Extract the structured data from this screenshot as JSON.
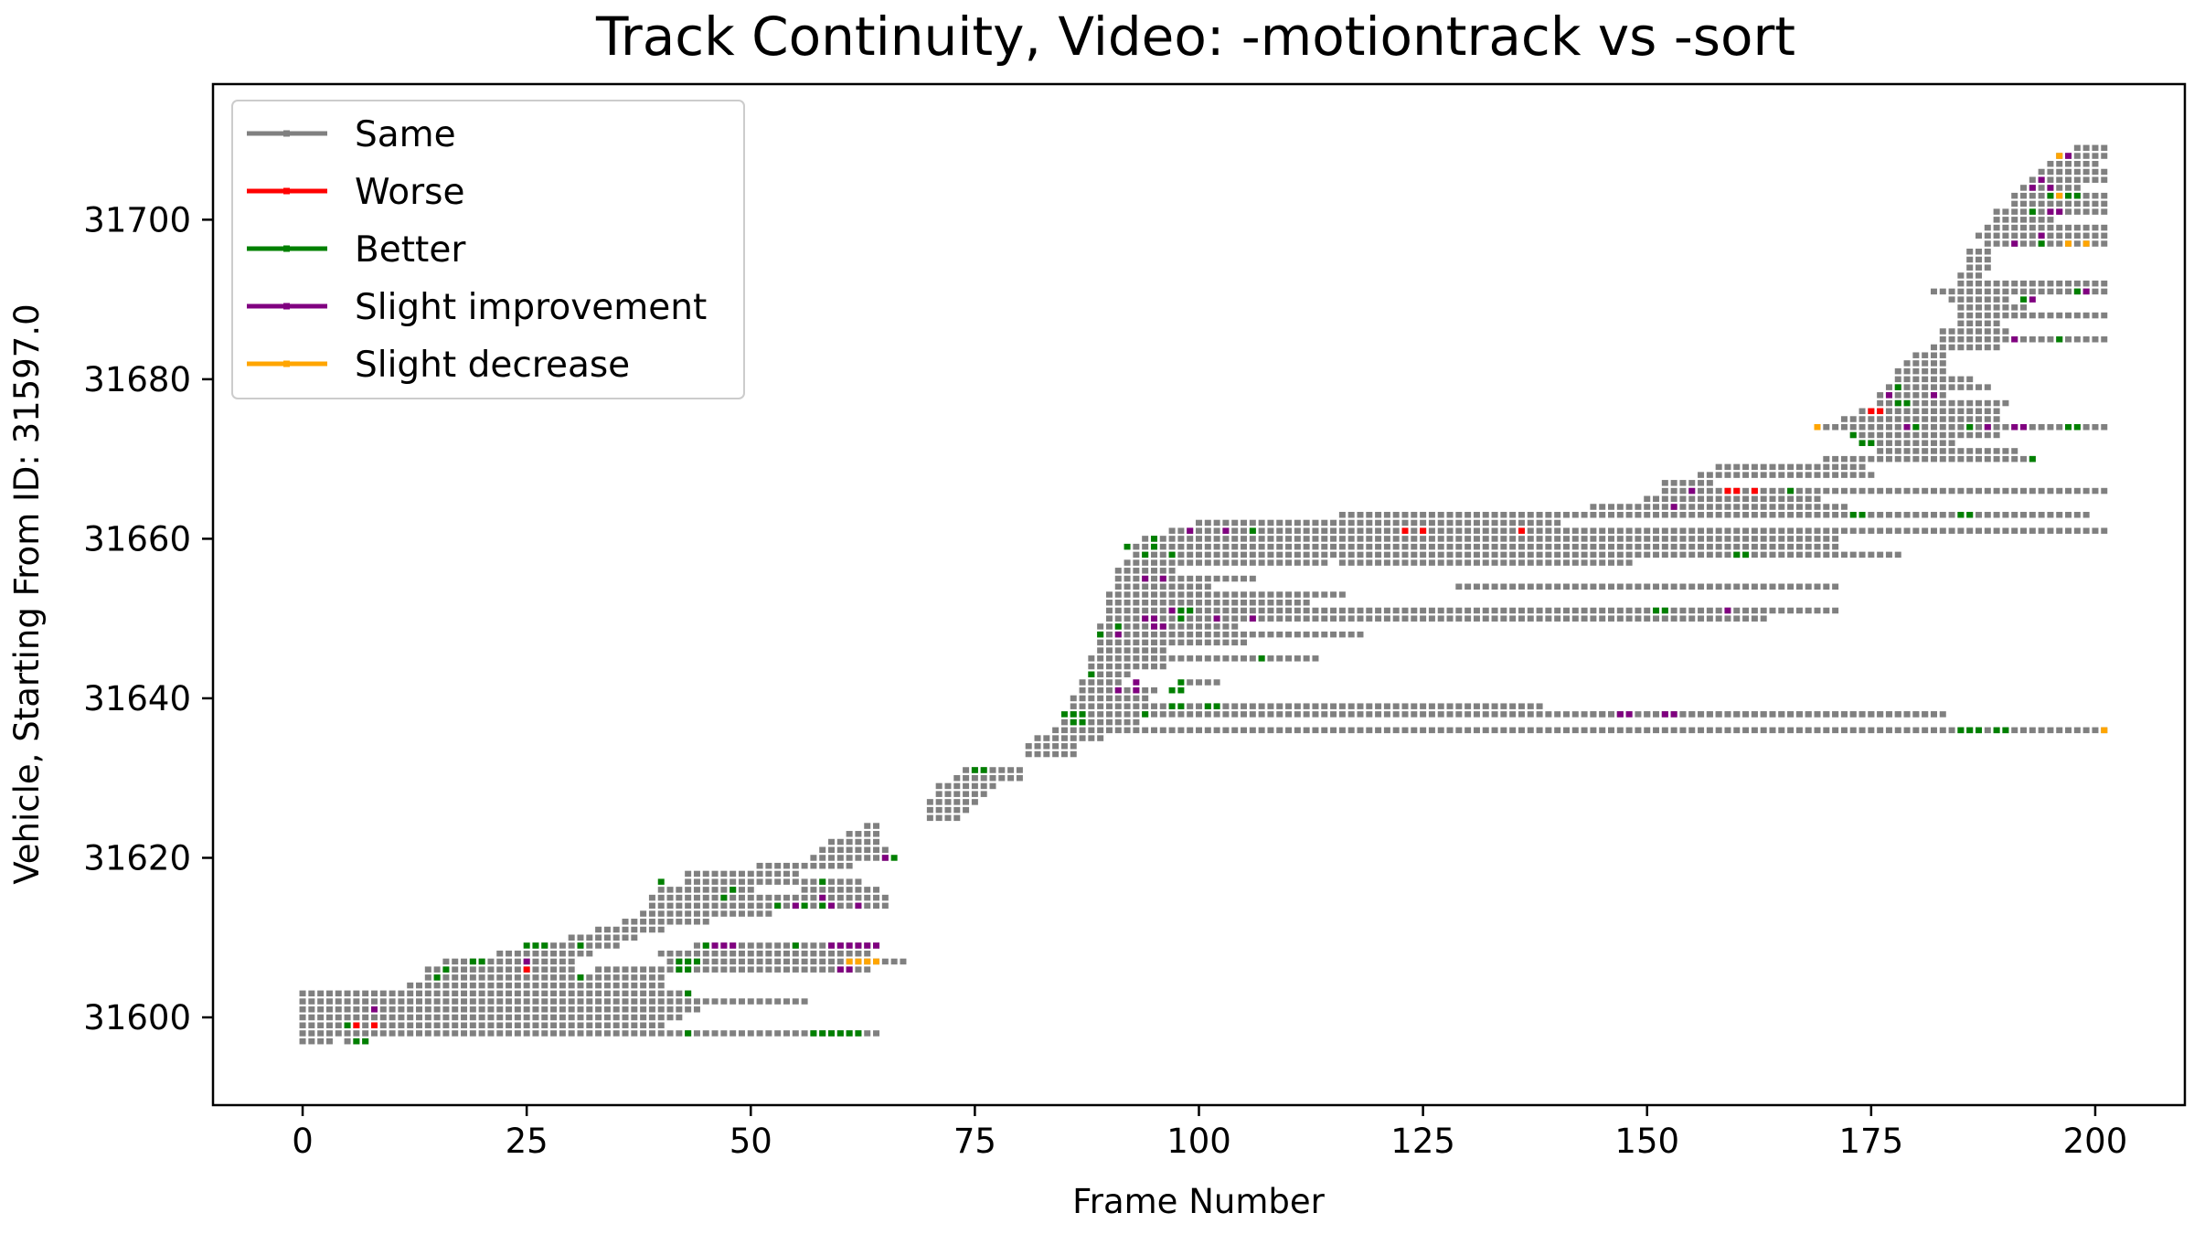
{
  "chart_data": {
    "type": "scatter",
    "title": "Track Continuity, Video: -motiontrack vs -sort",
    "xlabel": "Frame Number",
    "ylabel": "Vehicle, Starting From ID: 31597.0",
    "xlim": [
      -10,
      210
    ],
    "ylim": [
      31589,
      31717
    ],
    "xticks": [
      0,
      25,
      50,
      75,
      100,
      125,
      150,
      175,
      200
    ],
    "yticks": [
      31600,
      31620,
      31640,
      31660,
      31680,
      31700
    ],
    "grid": false,
    "legend_position": "top-left",
    "series": [
      {
        "name": "Same",
        "color": "#808080"
      },
      {
        "name": "Worse",
        "color": "#ff0000"
      },
      {
        "name": "Better",
        "color": "#008000"
      },
      {
        "name": "Slight improvement",
        "color": "#800080"
      },
      {
        "name": "Slight decrease",
        "color": "#ffa500"
      }
    ],
    "tracks": [
      [
        31597,
        0,
        3
      ],
      [
        31597,
        5,
        7
      ],
      [
        31598,
        0,
        64
      ],
      [
        31599,
        0,
        40
      ],
      [
        31600,
        0,
        42
      ],
      [
        31601,
        0,
        44
      ],
      [
        31602,
        0,
        56
      ],
      [
        31603,
        0,
        43
      ],
      [
        31604,
        12,
        40
      ],
      [
        31605,
        14,
        40
      ],
      [
        31606,
        14,
        30
      ],
      [
        31606,
        33,
        63
      ],
      [
        31607,
        16,
        30
      ],
      [
        31607,
        41,
        67
      ],
      [
        31608,
        22,
        32
      ],
      [
        31608,
        40,
        63
      ],
      [
        31609,
        26,
        35
      ],
      [
        31609,
        44,
        64
      ],
      [
        31610,
        30,
        37
      ],
      [
        31611,
        33,
        40
      ],
      [
        31612,
        36,
        45
      ],
      [
        31613,
        38,
        52
      ],
      [
        31614,
        39,
        65
      ],
      [
        31615,
        39,
        65
      ],
      [
        31616,
        40,
        50
      ],
      [
        31616,
        56,
        64
      ],
      [
        31617,
        43,
        62
      ],
      [
        31618,
        43,
        55
      ],
      [
        31619,
        51,
        61
      ],
      [
        31620,
        57,
        65
      ],
      [
        31621,
        58,
        65
      ],
      [
        31622,
        59,
        64
      ],
      [
        31623,
        61,
        64
      ],
      [
        31624,
        63,
        64
      ],
      [
        31625,
        70,
        73
      ],
      [
        31626,
        70,
        74
      ],
      [
        31627,
        70,
        75
      ],
      [
        31628,
        71,
        76
      ],
      [
        31629,
        71,
        77
      ],
      [
        31630,
        73,
        80
      ],
      [
        31631,
        74,
        80
      ],
      [
        31633,
        81,
        86
      ],
      [
        31634,
        81,
        86
      ],
      [
        31635,
        82,
        89
      ],
      [
        31636,
        84,
        201
      ],
      [
        31637,
        85,
        93
      ],
      [
        31638,
        86,
        182
      ],
      [
        31638,
        144,
        147
      ],
      [
        31638,
        150,
        183
      ],
      [
        31639,
        86,
        138
      ],
      [
        31640,
        86,
        94
      ],
      [
        31641,
        87,
        95
      ],
      [
        31642,
        87,
        91
      ],
      [
        31642,
        99,
        102
      ],
      [
        31643,
        88,
        92
      ],
      [
        31644,
        88,
        96
      ],
      [
        31645,
        88,
        113
      ],
      [
        31646,
        89,
        96
      ],
      [
        31647,
        89,
        105
      ],
      [
        31648,
        89,
        118
      ],
      [
        31649,
        89,
        104
      ],
      [
        31650,
        90,
        163
      ],
      [
        31651,
        90,
        171
      ],
      [
        31652,
        90,
        112
      ],
      [
        31653,
        90,
        116
      ],
      [
        31654,
        91,
        101
      ],
      [
        31654,
        129,
        171
      ],
      [
        31655,
        91,
        106
      ],
      [
        31656,
        91,
        97
      ],
      [
        31657,
        92,
        114
      ],
      [
        31657,
        116,
        148
      ],
      [
        31658,
        93,
        178
      ],
      [
        31659,
        93,
        171
      ],
      [
        31660,
        94,
        171
      ],
      [
        31661,
        97,
        201
      ],
      [
        31662,
        100,
        140
      ],
      [
        31663,
        116,
        199
      ],
      [
        31664,
        144,
        172
      ],
      [
        31665,
        150,
        169
      ],
      [
        31666,
        152,
        201
      ],
      [
        31667,
        152,
        157
      ],
      [
        31668,
        156,
        175
      ],
      [
        31669,
        158,
        174
      ],
      [
        31670,
        170,
        193
      ],
      [
        31671,
        176,
        191
      ],
      [
        31672,
        174,
        184
      ],
      [
        31673,
        173,
        189
      ],
      [
        31674,
        169,
        201
      ],
      [
        31675,
        172,
        189
      ],
      [
        31676,
        174,
        189
      ],
      [
        31677,
        176,
        190
      ],
      [
        31678,
        176,
        183
      ],
      [
        31679,
        177,
        188
      ],
      [
        31680,
        178,
        186
      ],
      [
        31681,
        178,
        183
      ],
      [
        31682,
        179,
        183
      ],
      [
        31683,
        180,
        183
      ],
      [
        31684,
        182,
        189
      ],
      [
        31685,
        183,
        201
      ],
      [
        31686,
        183,
        190
      ],
      [
        31687,
        185,
        189
      ],
      [
        31688,
        185,
        201
      ],
      [
        31689,
        185,
        192
      ],
      [
        31690,
        184,
        190
      ],
      [
        31691,
        182,
        201
      ],
      [
        31692,
        185,
        201
      ],
      [
        31693,
        185,
        187
      ],
      [
        31694,
        186,
        188
      ],
      [
        31695,
        186,
        188
      ],
      [
        31696,
        186,
        188
      ],
      [
        31697,
        188,
        201
      ],
      [
        31698,
        187,
        201
      ],
      [
        31699,
        188,
        201
      ],
      [
        31700,
        189,
        195
      ],
      [
        31701,
        189,
        201
      ],
      [
        31702,
        191,
        201
      ],
      [
        31703,
        191,
        201
      ],
      [
        31704,
        192,
        198
      ],
      [
        31705,
        193,
        201
      ],
      [
        31706,
        194,
        201
      ],
      [
        31707,
        195,
        200
      ],
      [
        31708,
        196,
        201
      ],
      [
        31709,
        198,
        201
      ]
    ],
    "marks": {
      "Worse": [
        [
          31599,
          6
        ],
        [
          31599,
          8
        ],
        [
          31606,
          25
        ],
        [
          31676,
          175
        ],
        [
          31676,
          176
        ],
        [
          31661,
          123
        ],
        [
          31661,
          125
        ],
        [
          31661,
          136
        ],
        [
          31666,
          159
        ],
        [
          31666,
          160
        ],
        [
          31666,
          162
        ]
      ],
      "Better": [
        [
          31597,
          6
        ],
        [
          31597,
          7
        ],
        [
          31598,
          43
        ],
        [
          31598,
          57
        ],
        [
          31598,
          58
        ],
        [
          31598,
          59
        ],
        [
          31598,
          60
        ],
        [
          31598,
          61
        ],
        [
          31598,
          62
        ],
        [
          31599,
          5
        ],
        [
          31603,
          43
        ],
        [
          31605,
          15
        ],
        [
          31605,
          31
        ],
        [
          31606,
          16
        ],
        [
          31606,
          42
        ],
        [
          31606,
          43
        ],
        [
          31607,
          19
        ],
        [
          31607,
          20
        ],
        [
          31607,
          42
        ],
        [
          31607,
          43
        ],
        [
          31607,
          44
        ],
        [
          31609,
          25
        ],
        [
          31609,
          26
        ],
        [
          31609,
          27
        ],
        [
          31609,
          31
        ],
        [
          31609,
          45
        ],
        [
          31609,
          55
        ],
        [
          31614,
          53
        ],
        [
          31614,
          56
        ],
        [
          31614,
          58
        ],
        [
          31615,
          47
        ],
        [
          31616,
          48
        ],
        [
          31617,
          40
        ],
        [
          31617,
          58
        ],
        [
          31620,
          66
        ],
        [
          31631,
          75
        ],
        [
          31631,
          76
        ],
        [
          31637,
          86
        ],
        [
          31637,
          87
        ],
        [
          31638,
          85
        ],
        [
          31638,
          86
        ],
        [
          31638,
          87
        ],
        [
          31638,
          94
        ],
        [
          31639,
          97
        ],
        [
          31639,
          98
        ],
        [
          31639,
          101
        ],
        [
          31639,
          102
        ],
        [
          31641,
          97
        ],
        [
          31641,
          98
        ],
        [
          31642,
          98
        ],
        [
          31643,
          88
        ],
        [
          31645,
          107
        ],
        [
          31648,
          89
        ],
        [
          31649,
          91
        ],
        [
          31650,
          98
        ],
        [
          31651,
          98
        ],
        [
          31651,
          99
        ],
        [
          31651,
          151
        ],
        [
          31651,
          152
        ],
        [
          31658,
          94
        ],
        [
          31658,
          97
        ],
        [
          31659,
          92
        ],
        [
          31659,
          95
        ],
        [
          31660,
          95
        ],
        [
          31661,
          106
        ],
        [
          31636,
          185
        ],
        [
          31636,
          186
        ],
        [
          31636,
          187
        ],
        [
          31636,
          189
        ],
        [
          31636,
          190
        ],
        [
          31658,
          160
        ],
        [
          31658,
          161
        ],
        [
          31663,
          173
        ],
        [
          31663,
          174
        ],
        [
          31663,
          185
        ],
        [
          31663,
          186
        ],
        [
          31666,
          166
        ],
        [
          31670,
          193
        ],
        [
          31672,
          174
        ],
        [
          31672,
          175
        ],
        [
          31673,
          173
        ],
        [
          31674,
          180
        ],
        [
          31674,
          186
        ],
        [
          31674,
          197
        ],
        [
          31674,
          198
        ],
        [
          31677,
          178
        ],
        [
          31677,
          179
        ],
        [
          31679,
          178
        ],
        [
          31685,
          196
        ],
        [
          31690,
          192
        ],
        [
          31691,
          198
        ],
        [
          31697,
          194
        ],
        [
          31701,
          193
        ],
        [
          31703,
          195
        ],
        [
          31703,
          197
        ],
        [
          31703,
          198
        ]
      ],
      "Slight improvement": [
        [
          31601,
          8
        ],
        [
          31607,
          25
        ],
        [
          31609,
          46
        ],
        [
          31609,
          47
        ],
        [
          31609,
          48
        ],
        [
          31609,
          59
        ],
        [
          31609,
          60
        ],
        [
          31609,
          61
        ],
        [
          31609,
          62
        ],
        [
          31609,
          63
        ],
        [
          31609,
          64
        ],
        [
          31606,
          60
        ],
        [
          31606,
          61
        ],
        [
          31614,
          55
        ],
        [
          31614,
          59
        ],
        [
          31614,
          62
        ],
        [
          31615,
          58
        ],
        [
          31620,
          65
        ],
        [
          31641,
          91
        ],
        [
          31641,
          93
        ],
        [
          31642,
          93
        ],
        [
          31648,
          91
        ],
        [
          31649,
          95
        ],
        [
          31649,
          96
        ],
        [
          31650,
          94
        ],
        [
          31650,
          95
        ],
        [
          31651,
          97
        ],
        [
          31655,
          94
        ],
        [
          31655,
          96
        ],
        [
          31661,
          99
        ],
        [
          31661,
          103
        ],
        [
          31638,
          147
        ],
        [
          31638,
          148
        ],
        [
          31638,
          152
        ],
        [
          31638,
          153
        ],
        [
          31650,
          102
        ],
        [
          31650,
          106
        ],
        [
          31651,
          159
        ],
        [
          31664,
          153
        ],
        [
          31666,
          155
        ],
        [
          31674,
          179
        ],
        [
          31678,
          177
        ],
        [
          31678,
          182
        ],
        [
          31674,
          188
        ],
        [
          31674,
          191
        ],
        [
          31674,
          192
        ],
        [
          31685,
          191
        ],
        [
          31690,
          193
        ],
        [
          31691,
          199
        ],
        [
          31697,
          191
        ],
        [
          31701,
          195
        ],
        [
          31704,
          193
        ],
        [
          31704,
          195
        ],
        [
          31705,
          194
        ],
        [
          31708,
          197
        ],
        [
          31698,
          194
        ],
        [
          31701,
          196
        ]
      ],
      "Slight decrease": [
        [
          31607,
          61
        ],
        [
          31607,
          62
        ],
        [
          31607,
          63
        ],
        [
          31607,
          64
        ],
        [
          31674,
          169
        ],
        [
          31697,
          197
        ],
        [
          31697,
          199
        ],
        [
          31708,
          196
        ],
        [
          31636,
          201
        ],
        [
          31703,
          196
        ]
      ]
    }
  }
}
